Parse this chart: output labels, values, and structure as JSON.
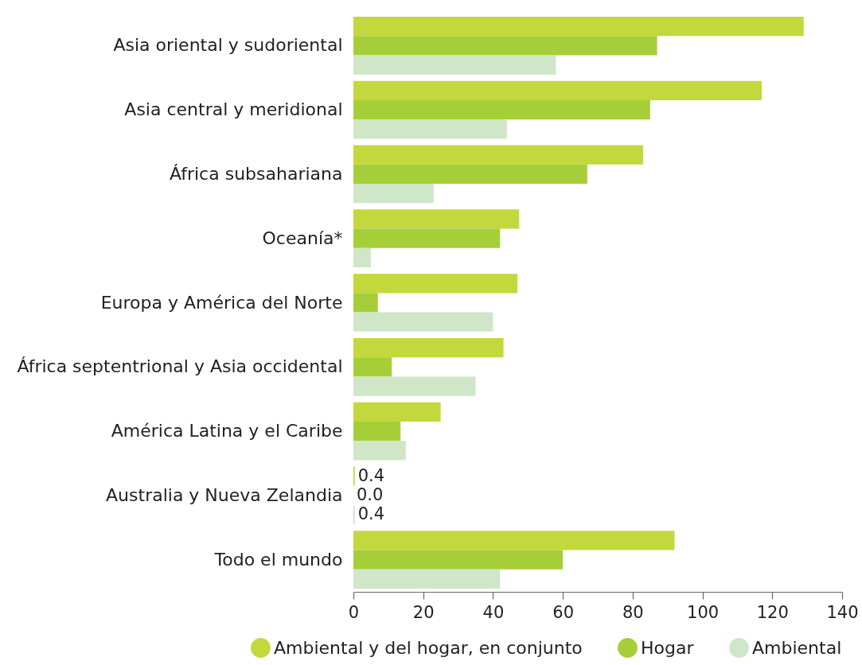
{
  "chart_data": {
    "type": "bar",
    "orientation": "horizontal",
    "categories": [
      "Asia oriental y sudoriental",
      "Asia central y meridional",
      "África subsahariana",
      "Oceanía*",
      "Europa y América del Norte",
      "África septentrional y Asia occidental",
      "América Latina y el Caribe",
      "Australia y Nueva Zelandia",
      "Todo el mundo"
    ],
    "series": [
      {
        "name": "Ambiental y del hogar, en conjunto",
        "color": "#c3d83d",
        "values": [
          129,
          117,
          83,
          47.5,
          47,
          43,
          25,
          0.4,
          92
        ],
        "value_labels": [
          null,
          null,
          null,
          null,
          null,
          null,
          null,
          "0.4",
          null
        ]
      },
      {
        "name": "Hogar",
        "color": "#a6ce39",
        "values": [
          87,
          85,
          67,
          42,
          7,
          11,
          13.5,
          0.0,
          60
        ],
        "value_labels": [
          null,
          null,
          null,
          null,
          null,
          null,
          null,
          "0.0",
          null
        ]
      },
      {
        "name": "Ambiental",
        "color": "#cfe6c8",
        "values": [
          58,
          44,
          23,
          5,
          40,
          35,
          15,
          0.4,
          42
        ],
        "value_labels": [
          null,
          null,
          null,
          null,
          null,
          null,
          null,
          "0.4",
          null
        ]
      }
    ],
    "xlim": [
      0,
      140
    ],
    "xticks": [
      0,
      20,
      40,
      60,
      80,
      100,
      120,
      140
    ],
    "grid": false,
    "legend": "bottom"
  }
}
